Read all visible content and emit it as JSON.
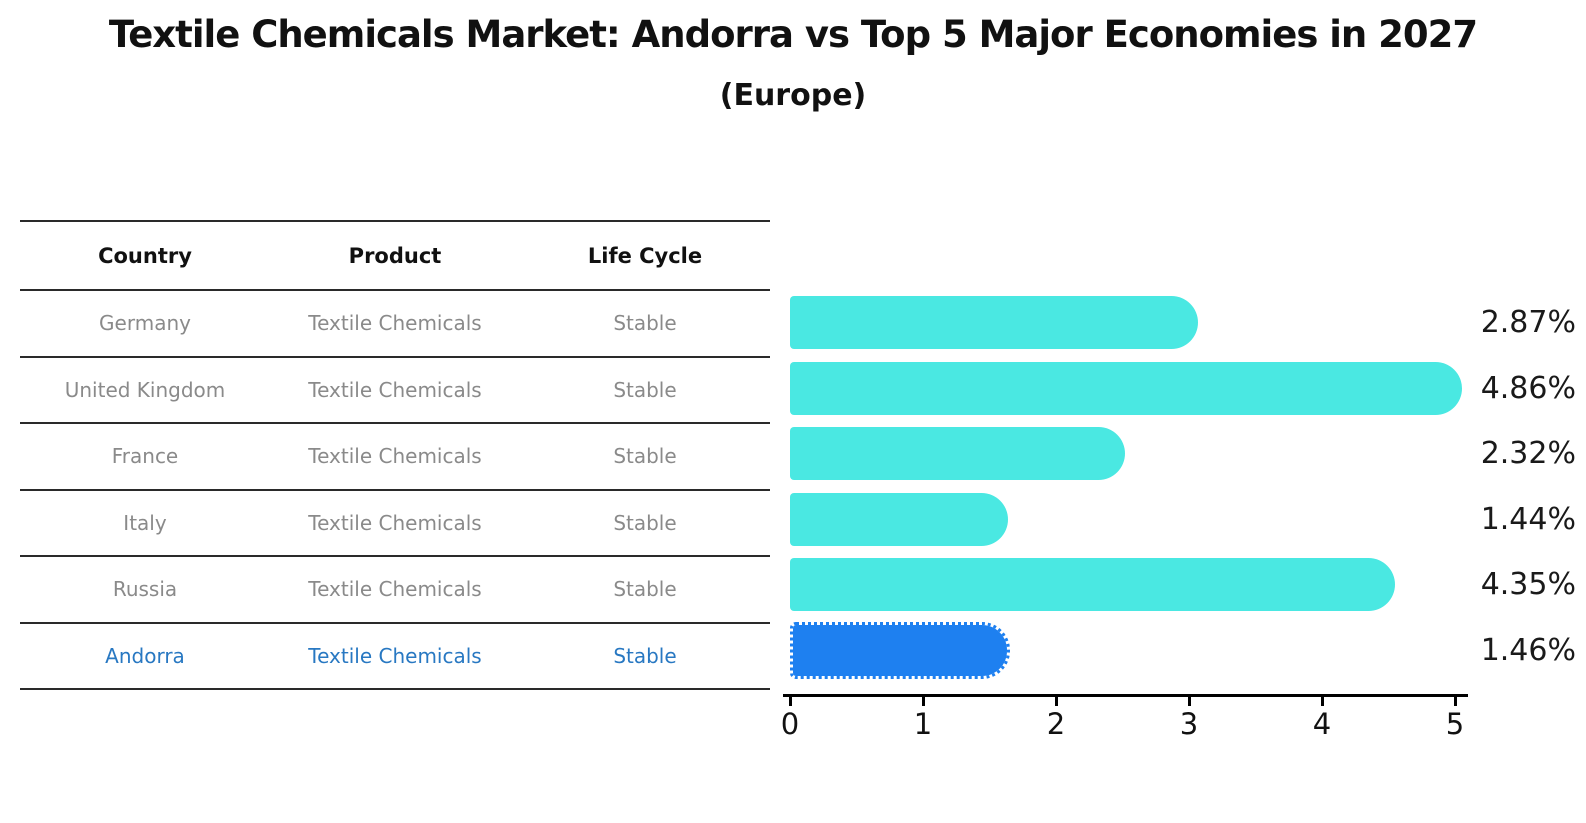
{
  "header": {
    "title": "Textile Chemicals Market: Andorra vs Top 5 Major Economies in 2027",
    "subtitle": "(Europe)"
  },
  "table": {
    "headers": [
      "Country",
      "Product",
      "Life Cycle"
    ],
    "rows": [
      {
        "country": "Germany",
        "product": "Textile Chemicals",
        "life_cycle": "Stable",
        "highlight": false
      },
      {
        "country": "United Kingdom",
        "product": "Textile Chemicals",
        "life_cycle": "Stable",
        "highlight": false
      },
      {
        "country": "France",
        "product": "Textile Chemicals",
        "life_cycle": "Stable",
        "highlight": false
      },
      {
        "country": "Italy",
        "product": "Textile Chemicals",
        "life_cycle": "Stable",
        "highlight": false
      },
      {
        "country": "Russia",
        "product": "Textile Chemicals",
        "life_cycle": "Stable",
        "highlight": false
      },
      {
        "country": "Andorra",
        "product": "Textile Chemicals",
        "life_cycle": "Stable",
        "highlight": true
      }
    ],
    "text_color": "#8a8a8a",
    "highlight_text_color": "#2878c2"
  },
  "chart_data": {
    "type": "bar",
    "orientation": "horizontal",
    "title": "Textile Chemicals Market: Andorra vs Top 5 Major Economies in 2027",
    "subtitle": "(Europe)",
    "categories": [
      "Germany",
      "United Kingdom",
      "France",
      "Italy",
      "Russia",
      "Andorra"
    ],
    "values": [
      2.87,
      4.86,
      2.32,
      1.44,
      4.35,
      1.46
    ],
    "value_labels": [
      "2.87%",
      "4.86%",
      "2.32%",
      "1.44%",
      "4.35%",
      "1.46%"
    ],
    "x_ticks": [
      "0",
      "1",
      "2",
      "3",
      "4",
      "5"
    ],
    "xlim": [
      0,
      5
    ],
    "xlabel": "",
    "ylabel": "",
    "grid": false,
    "legend": false,
    "bar_color": "#4ae8e2",
    "highlight_bar_color": "#1e80f0",
    "highlight_index": 5
  }
}
